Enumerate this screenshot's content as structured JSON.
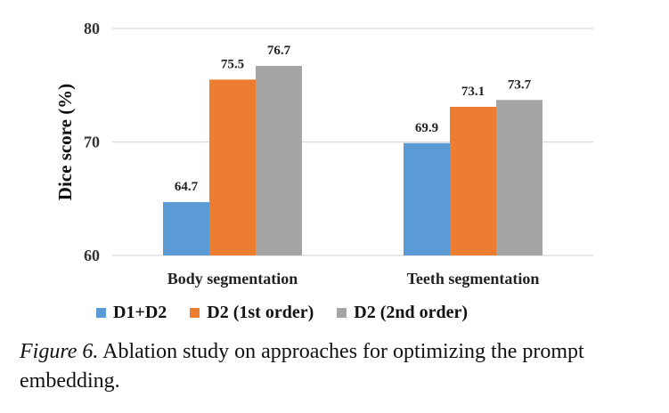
{
  "chart_data": {
    "type": "bar",
    "categories": [
      "Body segmentation",
      "Teeth segmentation"
    ],
    "series": [
      {
        "name": "D1+D2",
        "values": [
          64.7,
          69.9
        ],
        "color": "#5b9bd5"
      },
      {
        "name": "D2 (1st order)",
        "values": [
          75.5,
          73.1
        ],
        "color": "#ed7d31"
      },
      {
        "name": "D2 (2nd order)",
        "values": [
          76.7,
          73.7
        ],
        "color": "#a5a5a5"
      }
    ],
    "ylabel": "Dice score (%)",
    "ylim": [
      60,
      80
    ],
    "yticks": [
      60,
      70,
      80
    ],
    "grid": true,
    "legend_position": "bottom"
  },
  "caption": {
    "figure_label": "Figure 6.",
    "text": " Ablation study on approaches for optimizing the prompt embedding."
  }
}
